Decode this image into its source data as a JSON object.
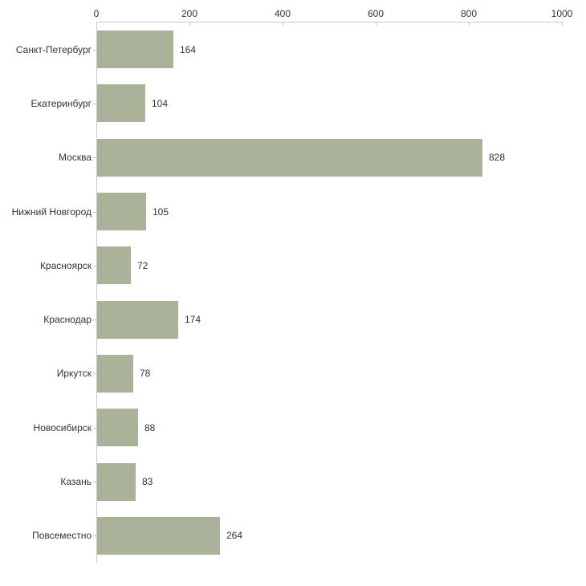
{
  "chart_data": {
    "type": "bar",
    "orientation": "horizontal",
    "title": "",
    "xlabel": "",
    "ylabel": "",
    "categories": [
      "Санкт-Петербург",
      "Екатеринбург",
      "Москва",
      "Нижний Новгород",
      "Красноярск",
      "Краснодар",
      "Иркутск",
      "Новосибирск",
      "Казань",
      "Повсеместно"
    ],
    "values": [
      164,
      104,
      828,
      105,
      72,
      174,
      78,
      88,
      83,
      264
    ],
    "data_labels": [
      "164",
      "104",
      "828",
      "105",
      "72",
      "174",
      "78",
      "88",
      "83",
      "264"
    ],
    "xlim": [
      0,
      1000
    ],
    "x_ticks": [
      0,
      200,
      400,
      600,
      800,
      1000
    ],
    "x_tick_labels": [
      "0",
      "200",
      "400",
      "600",
      "800",
      "1000"
    ],
    "axis_position": "top",
    "grid": false,
    "legend": false,
    "colors": {
      "bar_fill": "#abb29a",
      "axis_line": "#c9c9c9",
      "tick_mark": "#c2c6b2",
      "text": "#333333",
      "background": "#ffffff"
    }
  }
}
